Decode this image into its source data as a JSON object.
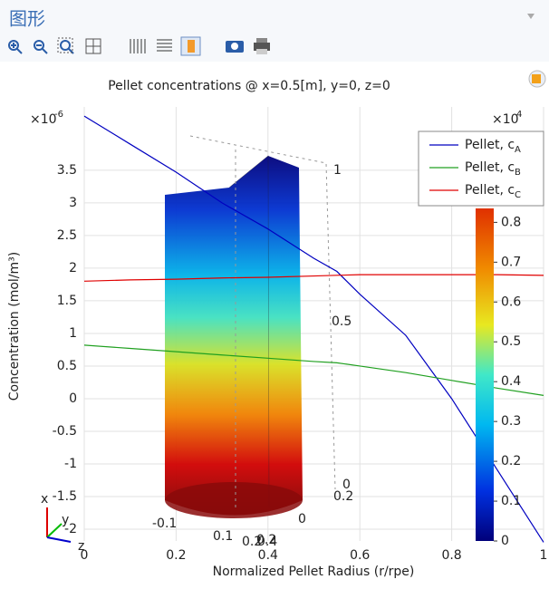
{
  "header": {
    "title": "图形"
  },
  "chart_data": {
    "type": "line",
    "title": "Pellet concentrations @ x=0.5[m], y=0, z=0",
    "x_label": "Normalized Pellet Radius (r/rpe)",
    "y_label": "Concentration (mol/m³)",
    "y_multiplier": {
      "base": "×10",
      "exp": "-6"
    },
    "x": [
      0,
      0.1,
      0.2,
      0.3,
      0.4,
      0.5,
      0.55,
      0.6,
      0.7,
      0.8,
      0.9,
      1.0
    ],
    "series": [
      {
        "name": "Pellet, cA",
        "color": "#0000c0",
        "values": [
          4.33,
          3.9,
          3.47,
          3.0,
          2.6,
          2.15,
          1.95,
          1.6,
          0.97,
          0.0,
          -1.1,
          -2.2
        ]
      },
      {
        "name": "Pellet, cB",
        "color": "#20a020",
        "values": [
          0.82,
          0.77,
          0.72,
          0.67,
          0.62,
          0.57,
          0.55,
          0.5,
          0.4,
          0.28,
          0.16,
          0.05
        ]
      },
      {
        "name": "Pellet, cC",
        "color": "#e00000",
        "values": [
          1.8,
          1.82,
          1.83,
          1.85,
          1.86,
          1.88,
          1.89,
          1.9,
          1.9,
          1.9,
          1.9,
          1.89
        ]
      }
    ],
    "xlim": [
      0,
      1
    ],
    "ylim": [
      -2.18,
      4.47
    ],
    "xticks": [
      0,
      0.2,
      0.4,
      0.6,
      0.8,
      1
    ],
    "yticks": [
      -2,
      -1.5,
      -1,
      -0.5,
      0,
      0.5,
      1,
      1.5,
      2,
      2.5,
      3,
      3.5
    ],
    "grid": true,
    "colorbar": {
      "multiplier": {
        "base": "×10",
        "exp": "4"
      },
      "lim": [
        0,
        0.835
      ],
      "ticks": [
        0,
        0.1,
        0.2,
        0.3,
        0.4,
        0.5,
        0.6,
        0.7,
        0.8
      ]
    }
  },
  "scene": {
    "labels": [
      "1",
      "0.5",
      "0",
      "0.2",
      "-0.1",
      "0.1",
      "0.2",
      "0.4",
      "0",
      "0.2"
    ],
    "triad": [
      "x",
      "y",
      "z"
    ]
  }
}
